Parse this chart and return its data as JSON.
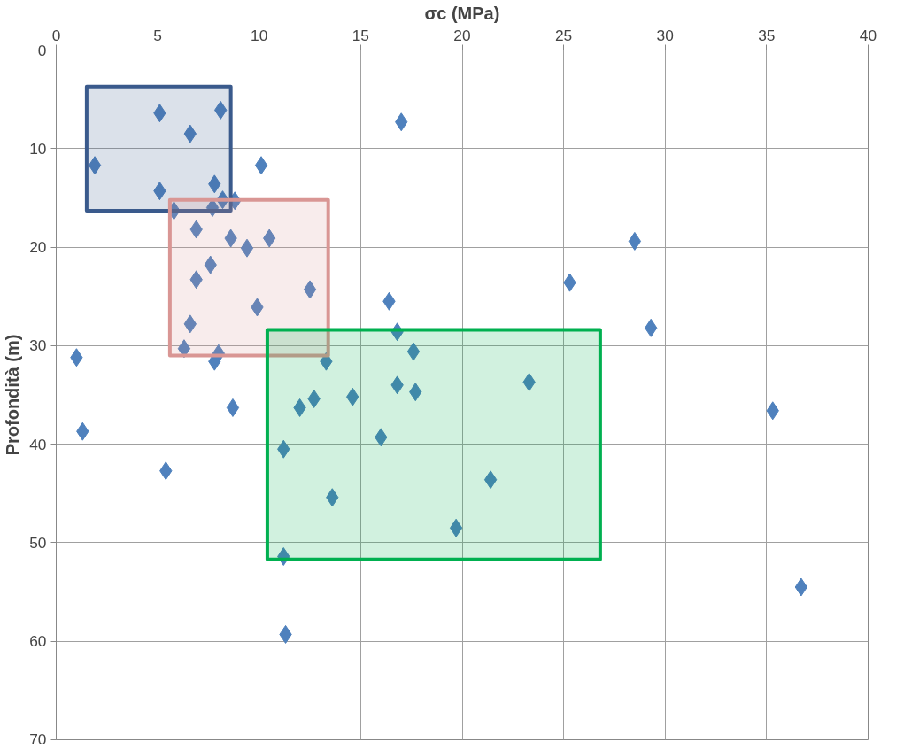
{
  "chart_data": {
    "type": "scatter",
    "xlabel": "σc (MPa)",
    "ylabel": "Profondità (m)",
    "xlim": [
      0,
      40
    ],
    "ylim": [
      70,
      0
    ],
    "xticks": [
      0,
      5,
      10,
      15,
      20,
      25,
      30,
      35,
      40
    ],
    "yticks": [
      0,
      10,
      20,
      30,
      40,
      50,
      60,
      70
    ],
    "grid": true,
    "series": [
      {
        "color": "#4f81bd",
        "marker": "diamond",
        "x": [
          5.1,
          8.1,
          6.6,
          1.9,
          10.1,
          5.1,
          7.8,
          17.0,
          5.8,
          8.2,
          8.8,
          7.7,
          6.9,
          8.6,
          10.5,
          9.4,
          7.6,
          6.9,
          12.5,
          9.9,
          6.6,
          6.3,
          8.0,
          7.8,
          1.0,
          13.3,
          16.4,
          16.8,
          17.6,
          16.8,
          17.7,
          23.3,
          14.6,
          12.7,
          12.0,
          8.7,
          1.3,
          16.0,
          11.2,
          5.4,
          13.6,
          21.4,
          19.7,
          11.2,
          11.3,
          25.3,
          28.5,
          29.3,
          35.3,
          36.7
        ],
        "values": [
          6.4,
          6.1,
          8.5,
          11.7,
          11.7,
          14.3,
          13.6,
          7.3,
          16.3,
          15.2,
          15.3,
          16.0,
          18.2,
          19.1,
          19.1,
          20.1,
          21.8,
          23.3,
          24.3,
          26.1,
          27.8,
          30.3,
          30.8,
          31.6,
          31.2,
          31.6,
          25.5,
          28.6,
          30.6,
          34.0,
          34.7,
          33.7,
          35.2,
          35.4,
          36.3,
          36.3,
          38.7,
          39.3,
          40.5,
          42.7,
          45.4,
          43.6,
          48.5,
          51.4,
          59.3,
          23.6,
          19.4,
          28.2,
          36.6,
          54.5
        ]
      },
      {
        "type": "area",
        "color": "#3a5a8c",
        "x": [
          1.5,
          8.6,
          8.6,
          1.5,
          1.5
        ],
        "values": [
          3.7,
          3.7,
          16.3,
          16.3,
          3.7
        ]
      },
      {
        "type": "area",
        "color": "#d99694",
        "x": [
          5.6,
          13.4,
          13.4,
          5.6,
          5.6
        ],
        "values": [
          15.2,
          15.2,
          31.0,
          31.0,
          15.2
        ]
      },
      {
        "type": "area",
        "color": "#00b050",
        "x": [
          10.4,
          26.8,
          26.8,
          10.4,
          10.4
        ],
        "values": [
          28.4,
          28.4,
          51.7,
          51.7,
          28.4
        ]
      }
    ]
  }
}
